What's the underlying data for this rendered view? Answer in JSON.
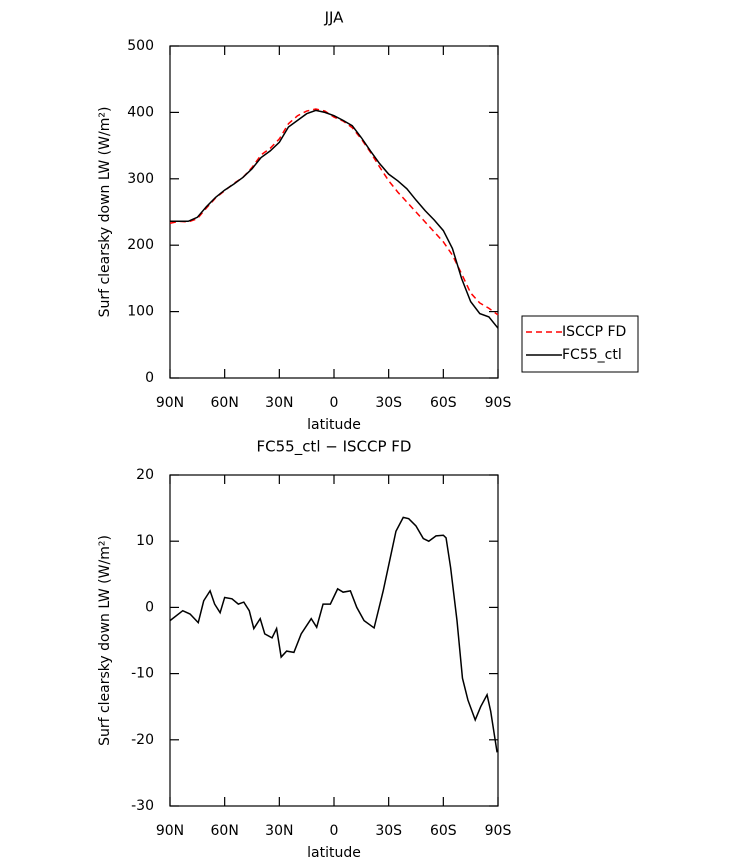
{
  "chart_data": [
    {
      "type": "line",
      "title": "JJA",
      "xlabel": "latitude",
      "ylabel": "Surf clearsky down LW (W/m²)",
      "x": [
        90,
        85,
        80,
        75,
        70,
        65,
        60,
        55,
        50,
        45,
        40,
        35,
        30,
        25,
        20,
        15,
        10,
        5,
        0,
        -5,
        -10,
        -15,
        -20,
        -25,
        -30,
        -35,
        -40,
        -45,
        -50,
        -55,
        -60,
        -65,
        -70,
        -75,
        -80,
        -85,
        -90
      ],
      "series": [
        {
          "name": "ISCCP FD",
          "color": "#ff0000",
          "linestyle": "dashed",
          "values": [
            233,
            236,
            235,
            240,
            256,
            271,
            282,
            293,
            302,
            317,
            336,
            346,
            360,
            383,
            395,
            402,
            405,
            402,
            393,
            387,
            377,
            360,
            340,
            318,
            297,
            280,
            265,
            250,
            235,
            220,
            205,
            185,
            157,
            128,
            113,
            105,
            95
          ]
        },
        {
          "name": "FC55_ctl",
          "color": "#000000",
          "linestyle": "solid",
          "values": [
            236,
            236,
            236,
            242,
            258,
            272,
            283,
            292,
            302,
            315,
            332,
            342,
            355,
            378,
            388,
            398,
            403,
            400,
            395,
            388,
            380,
            362,
            342,
            323,
            307,
            297,
            285,
            268,
            252,
            238,
            222,
            195,
            150,
            115,
            97,
            92,
            75
          ]
        }
      ],
      "xlim": [
        90,
        -90
      ],
      "xticks": [
        {
          "value": 90,
          "label": "90N"
        },
        {
          "value": 60,
          "label": "60N"
        },
        {
          "value": 30,
          "label": "30N"
        },
        0,
        {
          "value": -30,
          "label": "30S"
        },
        {
          "value": -60,
          "label": "60S"
        },
        {
          "value": -90,
          "label": "90S"
        }
      ],
      "ylim": [
        0,
        500
      ],
      "yticks": [
        0,
        100,
        200,
        300,
        400,
        500
      ],
      "legend": "right"
    },
    {
      "type": "line",
      "title": "FC55_ctl − ISCCP FD",
      "xlabel": "latitude",
      "ylabel": "Surf clearsky down LW (W/m²)",
      "x": [
        90,
        83,
        79,
        74.5,
        71.5,
        68,
        65.5,
        62.5,
        60,
        56,
        52.5,
        49.5,
        46.5,
        44,
        40.5,
        38,
        34,
        31.5,
        29,
        26,
        22,
        18,
        12.5,
        9.5,
        6,
        2,
        -2,
        -5,
        -9,
        -12.5,
        -16.5,
        -22,
        -27,
        -30.5,
        -34,
        -38,
        -41,
        -45,
        -49,
        -52,
        -56,
        -60,
        -61.5,
        -64,
        -67.5,
        -70.5,
        -73.5,
        -77.5,
        -80.5,
        -84,
        -86,
        -89.5
      ],
      "values": [
        -2,
        -0.5,
        -1,
        -2.3,
        1,
        2.5,
        0.5,
        -0.8,
        1.5,
        1.3,
        0.5,
        0.8,
        -0.5,
        -3.2,
        -1.7,
        -4,
        -4.6,
        -3.2,
        -7.5,
        -6.6,
        -6.8,
        -4,
        -1.7,
        -3,
        0.5,
        0.5,
        2.8,
        2.3,
        2.5,
        0,
        -2,
        -3.1,
        2.5,
        7,
        11.5,
        13.6,
        13.4,
        12.3,
        10.4,
        10,
        10.8,
        10.9,
        10.5,
        6,
        -2,
        -10.7,
        -14,
        -17,
        -15,
        -13.2,
        -15.7,
        -21.9
      ],
      "color": "#000000",
      "xlim": [
        90,
        -90
      ],
      "xticks": [
        {
          "value": 90,
          "label": "90N"
        },
        {
          "value": 60,
          "label": "60N"
        },
        {
          "value": 30,
          "label": "30N"
        },
        0,
        {
          "value": -30,
          "label": "30S"
        },
        {
          "value": -60,
          "label": "60S"
        },
        {
          "value": -90,
          "label": "90S"
        }
      ],
      "ylim": [
        -30,
        20
      ],
      "yticks": [
        -30,
        -20,
        -10,
        0,
        10,
        20
      ]
    }
  ]
}
